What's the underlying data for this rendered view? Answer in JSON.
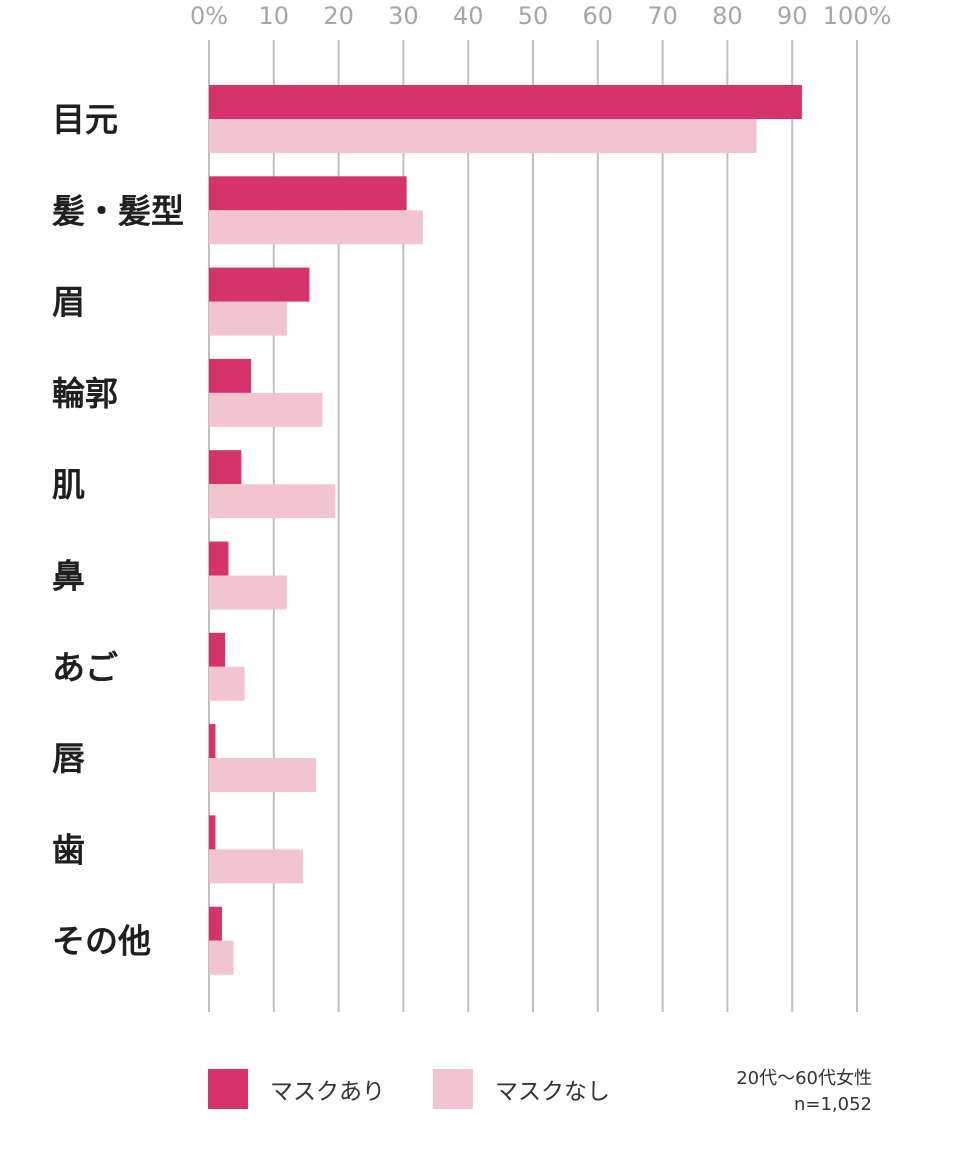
{
  "chart_data": {
    "type": "bar",
    "orientation": "horizontal",
    "categories": [
      "目元",
      "髪・髪型",
      "眉",
      "輪郭",
      "肌",
      "鼻",
      "あご",
      "唇",
      "歯",
      "その他"
    ],
    "series": [
      {
        "name": "マスクあり",
        "color": "#d6336c",
        "values": [
          91.5,
          30.5,
          15.5,
          6.5,
          5.0,
          3.0,
          2.5,
          1.0,
          1.0,
          2.0
        ]
      },
      {
        "name": "マスクなし",
        "color": "#f2c4d0",
        "values": [
          84.5,
          33.0,
          12.0,
          17.5,
          19.5,
          12.0,
          5.5,
          16.5,
          14.5,
          3.8
        ]
      }
    ],
    "x_ticks": [
      "0%",
      "10",
      "20",
      "30",
      "40",
      "50",
      "60",
      "70",
      "80",
      "90",
      "100%"
    ],
    "xlim": [
      0,
      100
    ],
    "grid": true,
    "legend_position": "bottom-left"
  },
  "note": {
    "line1": "20代〜60代女性",
    "line2": "n=1,052"
  }
}
